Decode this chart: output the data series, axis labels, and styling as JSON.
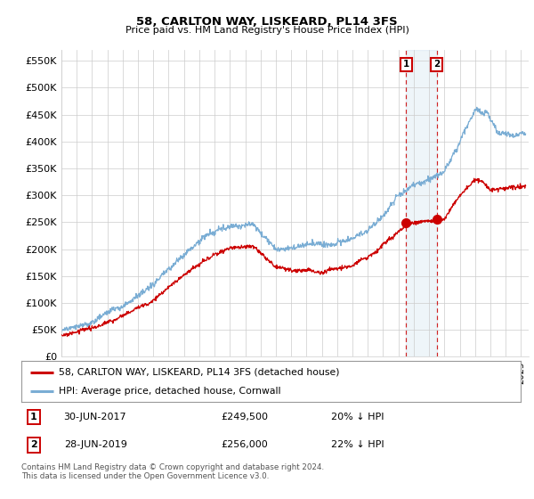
{
  "title": "58, CARLTON WAY, LISKEARD, PL14 3FS",
  "subtitle": "Price paid vs. HM Land Registry's House Price Index (HPI)",
  "ylabel_ticks": [
    "£0",
    "£50K",
    "£100K",
    "£150K",
    "£200K",
    "£250K",
    "£300K",
    "£350K",
    "£400K",
    "£450K",
    "£500K",
    "£550K"
  ],
  "ytick_values": [
    0,
    50000,
    100000,
    150000,
    200000,
    250000,
    300000,
    350000,
    400000,
    450000,
    500000,
    550000
  ],
  "xlim_start": 1995.25,
  "xlim_end": 2025.5,
  "ylim_min": 0,
  "ylim_max": 570000,
  "transaction1_date": 2017.5,
  "transaction1_price": 249500,
  "transaction2_date": 2019.5,
  "transaction2_price": 256000,
  "red_line_color": "#cc0000",
  "blue_line_color": "#7aadd4",
  "annotation_box_color": "#cc0000",
  "vline_color": "#cc0000",
  "legend_label1": "58, CARLTON WAY, LISKEARD, PL14 3FS (detached house)",
  "legend_label2": "HPI: Average price, detached house, Cornwall",
  "footer": "Contains HM Land Registry data © Crown copyright and database right 2024.\nThis data is licensed under the Open Government Licence v3.0.",
  "background_color": "#ffffff",
  "grid_color": "#cccccc"
}
